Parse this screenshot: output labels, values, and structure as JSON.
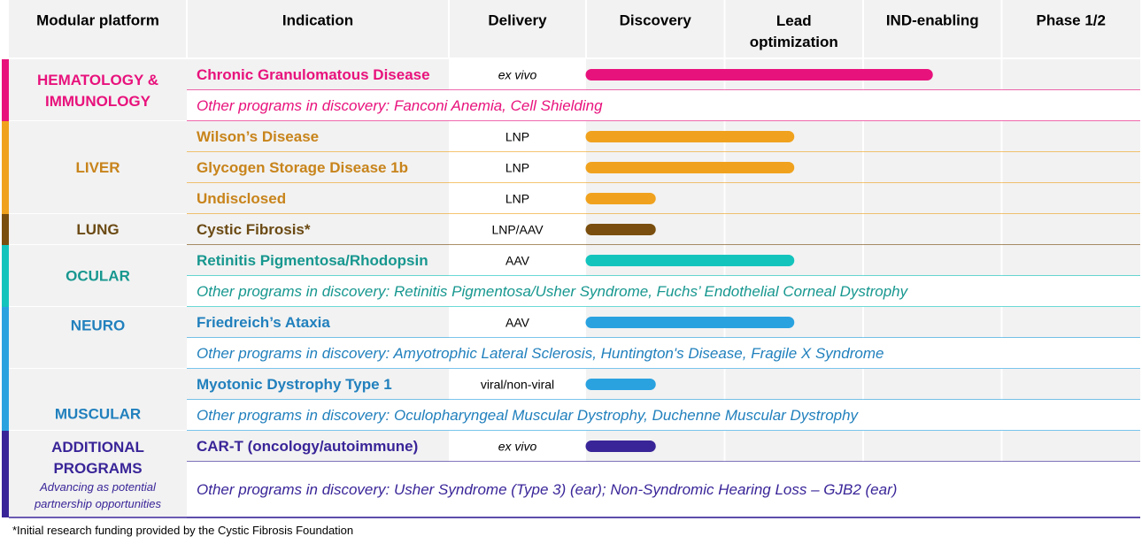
{
  "chart_data": {
    "type": "bar",
    "subtype": "pipeline-gantt",
    "title": "",
    "headers": {
      "platform": "Modular platform",
      "indication": "Indication",
      "delivery": "Delivery",
      "phases": [
        "Discovery",
        "Lead optimization",
        "IND-enabling",
        "Phase 1/2"
      ]
    },
    "phase_range": [
      0,
      4
    ],
    "groups": [
      {
        "name": "HEMATOLOGY & IMMUNOLOGY",
        "color": "#e8127c",
        "rows": [
          {
            "kind": "program",
            "indication": "Chronic Granulomatous Disease",
            "delivery": "ex vivo",
            "delivery_italic": true,
            "progress": 2.5
          },
          {
            "kind": "note",
            "text": "Other programs in discovery: Fanconi Anemia, Cell Shielding"
          }
        ]
      },
      {
        "name": "LIVER",
        "color": "#f0a21e",
        "text_color": "#c8841b",
        "rows": [
          {
            "kind": "program",
            "indication": "Wilson’s Disease",
            "delivery": "LNP",
            "delivery_italic": false,
            "progress": 1.5
          },
          {
            "kind": "program",
            "indication": "Glycogen Storage Disease 1b",
            "delivery": "LNP",
            "delivery_italic": false,
            "progress": 1.5
          },
          {
            "kind": "program",
            "indication": "Undisclosed",
            "delivery": "LNP",
            "delivery_italic": false,
            "progress": 0.5
          }
        ]
      },
      {
        "name": "LUNG",
        "color": "#7a4e0e",
        "text_color": "#6b4a14",
        "rows": [
          {
            "kind": "program",
            "indication": "Cystic Fibrosis*",
            "delivery": "LNP/AAV",
            "delivery_italic": false,
            "progress": 0.5
          }
        ]
      },
      {
        "name": "OCULAR",
        "color": "#13c4bd",
        "text_color": "#17978f",
        "rows": [
          {
            "kind": "program",
            "indication": "Retinitis Pigmentosa/Rhodopsin",
            "delivery": "AAV",
            "delivery_italic": false,
            "progress": 1.5
          },
          {
            "kind": "note",
            "text": "Other programs in discovery: Retinitis Pigmentosa/Usher Syndrome, Fuchs’ Endothelial Corneal Dystrophy"
          }
        ]
      },
      {
        "name": "NEURO",
        "color": "#2aa2e0",
        "text_color": "#2180bd",
        "rows": [
          {
            "kind": "program",
            "indication": "Friedreich’s Ataxia",
            "delivery": "AAV",
            "delivery_italic": false,
            "progress": 1.5
          },
          {
            "kind": "note",
            "text": "Other programs in discovery: Amyotrophic Lateral Sclerosis, Huntington's Disease, Fragile X Syndrome"
          }
        ]
      },
      {
        "name": "MUSCULAR",
        "color": "#2aa2e0",
        "text_color": "#2180bd",
        "rows": [
          {
            "kind": "program",
            "indication": "Myotonic Dystrophy Type 1",
            "delivery": "viral/non-viral",
            "delivery_italic": false,
            "progress": 0.5
          },
          {
            "kind": "note",
            "text": "Other programs in discovery: Oculopharyngeal Muscular Dystrophy, Duchenne Muscular Dystrophy"
          }
        ]
      },
      {
        "name": "ADDITIONAL PROGRAMS",
        "subtitle": "Advancing as potential partnership opportunities",
        "color": "#3a2598",
        "text_color": "#3a2598",
        "rows": [
          {
            "kind": "program",
            "indication": "CAR-T (oncology/autoimmune)",
            "delivery": "ex vivo",
            "delivery_italic": true,
            "progress": 0.5
          },
          {
            "kind": "note",
            "text": "Other programs in discovery: Usher Syndrome (Type 3) (ear); Non-Syndromic Hearing Loss – GJB2 (ear)"
          }
        ]
      }
    ]
  },
  "footnote": "*Initial research funding provided by the Cystic Fibrosis Foundation"
}
